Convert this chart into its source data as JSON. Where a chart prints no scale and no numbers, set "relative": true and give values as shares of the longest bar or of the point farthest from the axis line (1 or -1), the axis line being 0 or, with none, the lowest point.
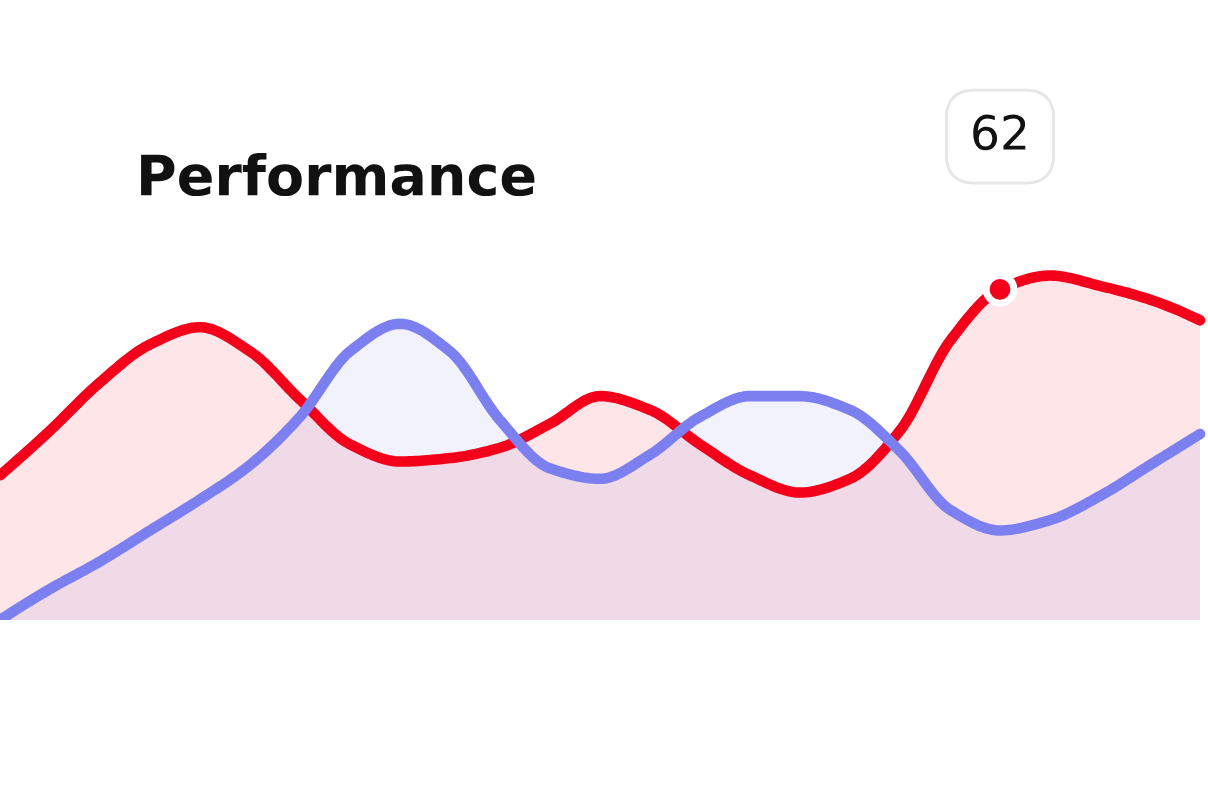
{
  "chart_data": {
    "type": "area",
    "title": "Performance",
    "relative": true,
    "categories": [
      null,
      null,
      null,
      null,
      null,
      null,
      null,
      null,
      null,
      null,
      null,
      null,
      null,
      null,
      null,
      null,
      null,
      null,
      null,
      null,
      null,
      null,
      null,
      null,
      null
    ],
    "series": [
      {
        "color": "#f5001a",
        "values": [
          0.42,
          0.55,
          0.69,
          0.8,
          0.85,
          0.78,
          0.64,
          0.51,
          0.46,
          0.47,
          0.5,
          0.57,
          0.65,
          0.61,
          0.51,
          0.42,
          0.37,
          0.41,
          0.55,
          0.81,
          0.96,
          1.0,
          0.97,
          0.93,
          0.87
        ]
      },
      {
        "color": "#7b7ff0",
        "values": [
          0,
          0.09,
          0.17,
          0.26,
          0.35,
          0.45,
          0.59,
          0.78,
          0.86,
          0.78,
          0.58,
          0.44,
          0.41,
          0.48,
          0.59,
          0.65,
          0.65,
          0.61,
          0.49,
          0.32,
          0.26,
          0.29,
          0.36,
          0.45,
          0.54
        ]
      }
    ],
    "annotations": [
      {
        "text": "62",
        "y": 0.96
      }
    ],
    "legend": false
  }
}
